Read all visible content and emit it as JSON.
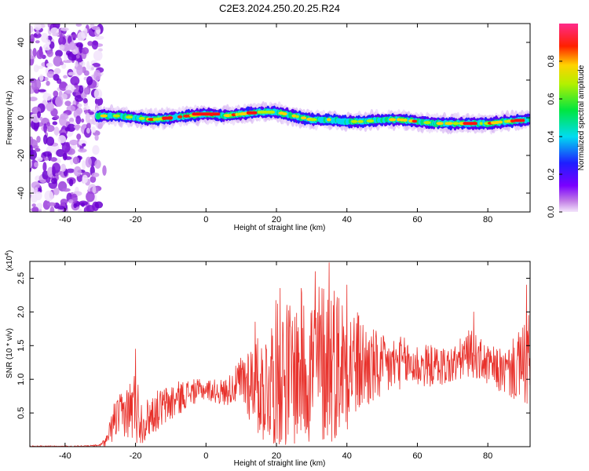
{
  "title": "C2E3.2024.250.20.25.R24",
  "chart_data": [
    {
      "type": "heatmap",
      "xlabel": "Height of straight line (km)",
      "ylabel": "Frequency (Hz)",
      "xlim": [
        -50,
        92
      ],
      "ylim": [
        -50,
        50
      ],
      "xticks": [
        -40,
        -20,
        0,
        20,
        40,
        60,
        80
      ],
      "yticks": [
        -40,
        -20,
        0,
        20,
        40
      ],
      "colorbar": {
        "label": "Normalized spectral amplitude",
        "range": [
          0,
          1
        ],
        "ticks": [
          0.0,
          0.2,
          0.4,
          0.6,
          0.8
        ],
        "colormap": "rainbow: violet-blue-cyan-green-yellow-red-magenta"
      },
      "noise_region": {
        "x": [
          -50,
          -30
        ],
        "y": [
          -50,
          50
        ]
      },
      "ridge": [
        {
          "x": -30,
          "y": 1
        },
        {
          "x": -25,
          "y": 1
        },
        {
          "x": -20,
          "y": 0
        },
        {
          "x": -15,
          "y": -1
        },
        {
          "x": -10,
          "y": 0
        },
        {
          "x": -5,
          "y": 1
        },
        {
          "x": 0,
          "y": 2
        },
        {
          "x": 5,
          "y": 1
        },
        {
          "x": 10,
          "y": 2
        },
        {
          "x": 15,
          "y": 3
        },
        {
          "x": 20,
          "y": 3
        },
        {
          "x": 25,
          "y": 1
        },
        {
          "x": 30,
          "y": -1
        },
        {
          "x": 35,
          "y": -1
        },
        {
          "x": 40,
          "y": -2
        },
        {
          "x": 45,
          "y": -2
        },
        {
          "x": 50,
          "y": -1
        },
        {
          "x": 55,
          "y": -1
        },
        {
          "x": 60,
          "y": -2
        },
        {
          "x": 65,
          "y": -3
        },
        {
          "x": 70,
          "y": -3
        },
        {
          "x": 75,
          "y": -3
        },
        {
          "x": 80,
          "y": -3
        },
        {
          "x": 85,
          "y": -2
        },
        {
          "x": 92,
          "y": -1
        }
      ]
    },
    {
      "type": "line",
      "xlabel": "Height of straight line (km)",
      "ylabel": "SNR (10 * v/v)",
      "multiplier_label": "(x10",
      "multiplier_exponent": "4",
      "multiplier_close": ")",
      "xlim": [
        -50,
        92
      ],
      "ylim": [
        0,
        27500
      ],
      "xticks": [
        -40,
        -20,
        0,
        20,
        40,
        60,
        80
      ],
      "yticks": [
        {
          "value": 5000,
          "label": "0.5"
        },
        {
          "value": 10000,
          "label": "1.0"
        },
        {
          "value": 15000,
          "label": "1.5"
        },
        {
          "value": 20000,
          "label": "2.0"
        },
        {
          "value": 25000,
          "label": "2.5"
        }
      ],
      "color": "#e8302a",
      "envelope": [
        {
          "x": -50,
          "base": 0,
          "amp": 100
        },
        {
          "x": -35,
          "base": 0,
          "amp": 100
        },
        {
          "x": -30,
          "base": 200,
          "amp": 200
        },
        {
          "x": -28,
          "base": 1000,
          "amp": 1000
        },
        {
          "x": -26,
          "base": 4000,
          "amp": 3000
        },
        {
          "x": -23,
          "base": 5000,
          "amp": 3500
        },
        {
          "x": -20,
          "base": 6000,
          "amp": 6000
        },
        {
          "x": -18,
          "base": 3500,
          "amp": 3000
        },
        {
          "x": -15,
          "base": 5000,
          "amp": 3000
        },
        {
          "x": -10,
          "base": 6500,
          "amp": 3000
        },
        {
          "x": -5,
          "base": 8000,
          "amp": 2000
        },
        {
          "x": 0,
          "base": 8500,
          "amp": 1500
        },
        {
          "x": 5,
          "base": 8000,
          "amp": 2000
        },
        {
          "x": 8,
          "base": 9000,
          "amp": 2500
        },
        {
          "x": 12,
          "base": 10000,
          "amp": 6000
        },
        {
          "x": 16,
          "base": 8500,
          "amp": 8000
        },
        {
          "x": 20,
          "base": 11000,
          "amp": 11000
        },
        {
          "x": 25,
          "base": 11000,
          "amp": 11000
        },
        {
          "x": 30,
          "base": 12000,
          "amp": 12000
        },
        {
          "x": 35,
          "base": 13000,
          "amp": 13000
        },
        {
          "x": 40,
          "base": 12500,
          "amp": 10000
        },
        {
          "x": 45,
          "base": 12000,
          "amp": 7000
        },
        {
          "x": 50,
          "base": 11500,
          "amp": 5000
        },
        {
          "x": 55,
          "base": 12500,
          "amp": 4000
        },
        {
          "x": 60,
          "base": 12000,
          "amp": 3500
        },
        {
          "x": 65,
          "base": 12000,
          "amp": 3000
        },
        {
          "x": 70,
          "base": 12000,
          "amp": 3000
        },
        {
          "x": 75,
          "base": 14000,
          "amp": 3500
        },
        {
          "x": 80,
          "base": 12000,
          "amp": 3000
        },
        {
          "x": 85,
          "base": 11000,
          "amp": 3500
        },
        {
          "x": 90,
          "base": 12000,
          "amp": 6000
        },
        {
          "x": 92,
          "base": 13000,
          "amp": 8000
        }
      ],
      "peaks": [
        {
          "x": -20,
          "y": 14500
        },
        {
          "x": 14,
          "y": 18500
        },
        {
          "x": 21,
          "y": 23500
        },
        {
          "x": 27,
          "y": 23500
        },
        {
          "x": 31,
          "y": 26000
        },
        {
          "x": 35,
          "y": 27300
        },
        {
          "x": 40,
          "y": 24000
        },
        {
          "x": 76,
          "y": 20000
        },
        {
          "x": 91,
          "y": 24000
        }
      ]
    }
  ]
}
